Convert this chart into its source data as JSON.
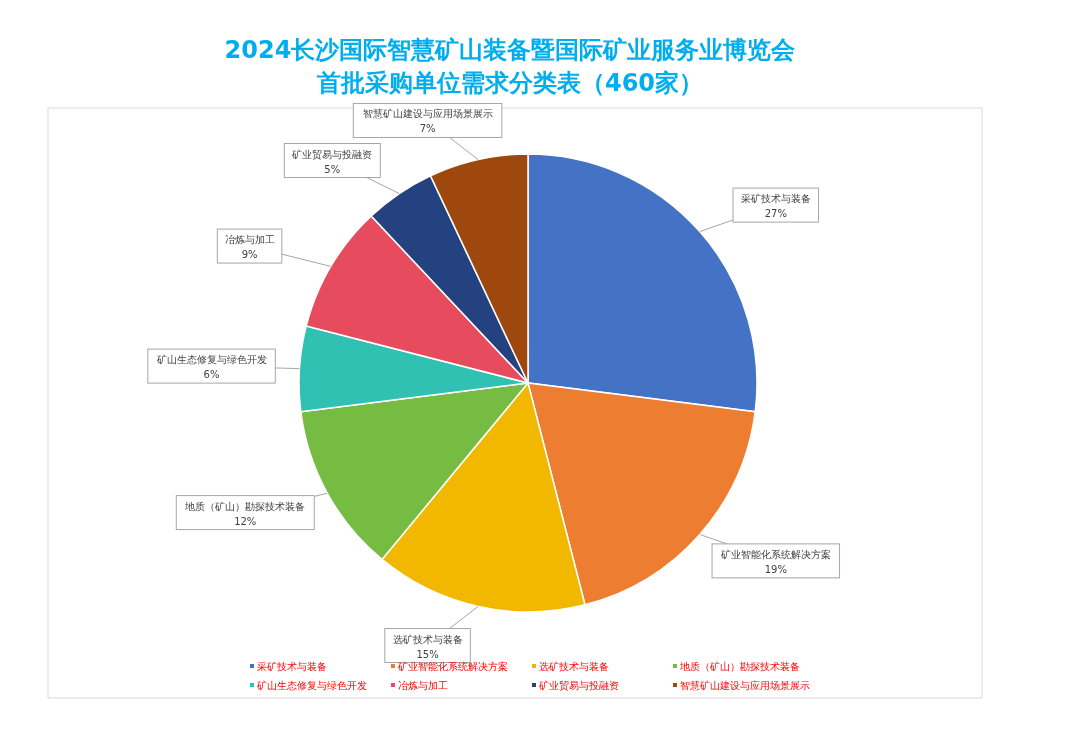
{
  "chart_data": {
    "type": "pie",
    "title": "2024长沙国际智慧矿山装备暨国际矿业服务业博览会",
    "subtitle": "首批采购单位需求分类表（460家）",
    "categories": [
      "采矿技术与装备",
      "矿业智能化系统解决方案",
      "选矿技术与装备",
      "地质（矿山）勘探技术装备",
      "矿山生态修复与绿色开发",
      "冶炼与加工",
      "矿业贸易与投融资",
      "智慧矿山建设与应用场景展示"
    ],
    "values": [
      27,
      19,
      15,
      12,
      6,
      9,
      5,
      7
    ],
    "colors": [
      "#4472c4",
      "#ed7d31",
      "#f2b800",
      "#76bc42",
      "#31c1b3",
      "#e64c5e",
      "#244280",
      "#9e480e"
    ],
    "value_labels": [
      "27%",
      "19%",
      "15%",
      "12%",
      "6%",
      "9%",
      "5%",
      "7%"
    ],
    "legend": "bottom"
  }
}
